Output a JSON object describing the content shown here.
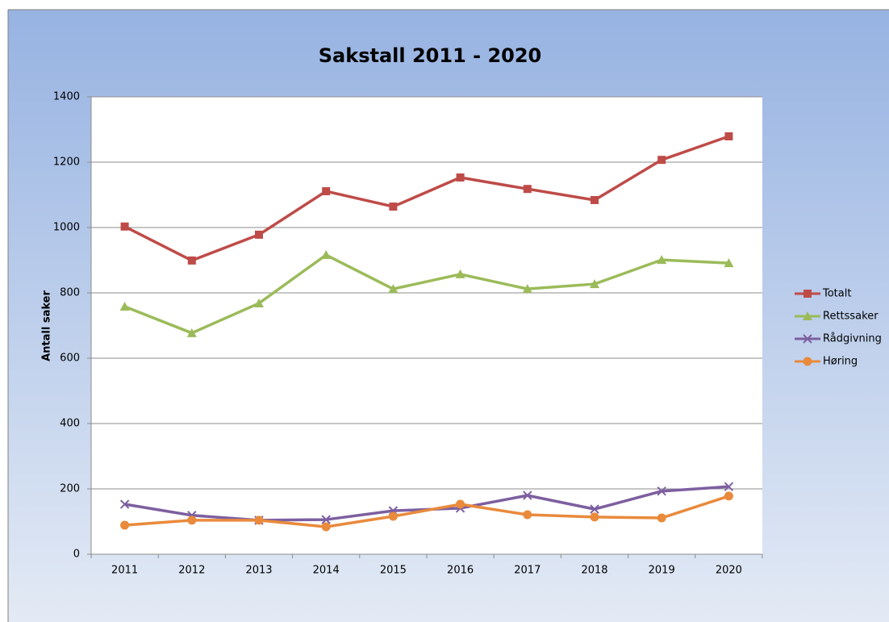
{
  "chart_data": {
    "type": "line",
    "title": "Sakstall 2011 - 2020",
    "y_label": "Antall saker",
    "categories": [
      "2011",
      "2012",
      "2013",
      "2014",
      "2015",
      "2016",
      "2017",
      "2018",
      "2019",
      "2020"
    ],
    "series": [
      {
        "name": "Totalt",
        "color": "#be4b48",
        "marker": "square",
        "values": [
          1003,
          899,
          978,
          1111,
          1064,
          1153,
          1118,
          1084,
          1207,
          1279
        ]
      },
      {
        "name": "Rettssaker",
        "color": "#9bbb59",
        "marker": "triangle",
        "values": [
          758,
          677,
          768,
          916,
          812,
          857,
          812,
          827,
          901,
          891
        ]
      },
      {
        "name": "Rådgivning",
        "color": "#7d5fa0",
        "marker": "x",
        "values": [
          153,
          119,
          104,
          106,
          133,
          141,
          180,
          138,
          193,
          207
        ]
      },
      {
        "name": "Høring",
        "color": "#e98a3c",
        "marker": "circle",
        "values": [
          89,
          104,
          104,
          84,
          116,
          153,
          121,
          114,
          111,
          178
        ]
      }
    ],
    "ylim": [
      0,
      1400
    ],
    "yticks": [
      0,
      200,
      400,
      600,
      800,
      1000,
      1200,
      1400
    ],
    "grid": true,
    "legend": "right"
  }
}
